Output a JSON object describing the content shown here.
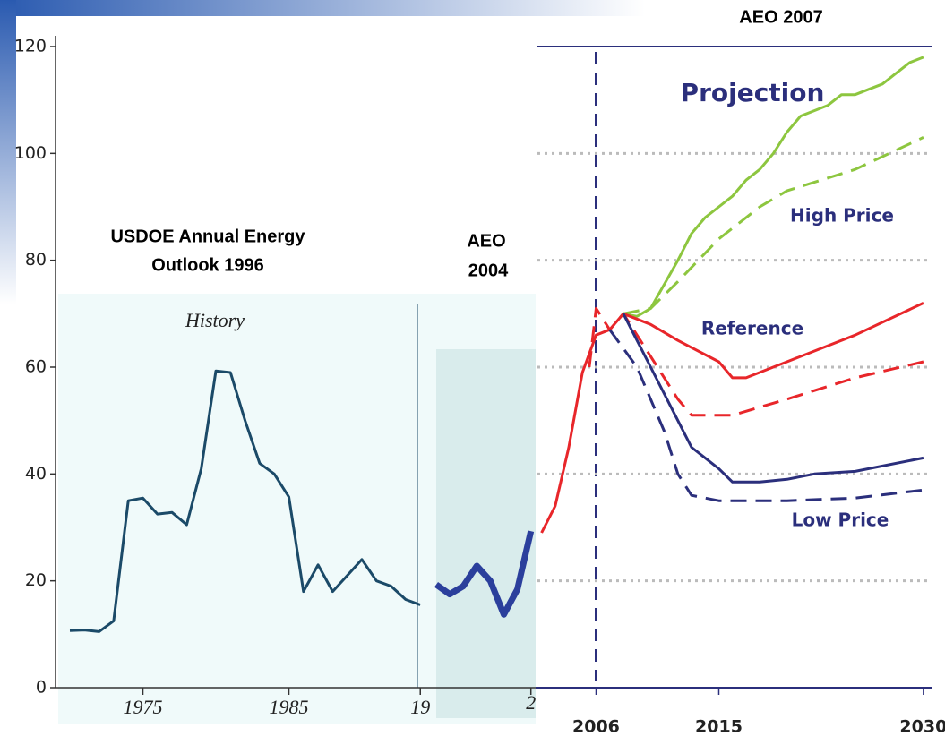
{
  "chart_data": [
    {
      "type": "line",
      "title": [
        "USDOE Annual Energy",
        "Outlook 1996"
      ],
      "annotation": "History",
      "xlim": [
        1969.2,
        2001.9
      ],
      "xticks": [
        1975,
        1985,
        {
          "value": 1994,
          "label": "19"
        }
      ],
      "ylim": [
        0,
        120
      ],
      "yticks": [
        0,
        20,
        40,
        60,
        80,
        100,
        120
      ],
      "series": [
        {
          "color": "#1b4a68",
          "x": [
            1970,
            1971,
            1972,
            1973,
            1974,
            1975,
            1976,
            1977,
            1978,
            1979,
            1980,
            1981,
            1982,
            1983,
            1984,
            1985,
            1986,
            1987,
            1988,
            1989,
            1990,
            1991,
            1992,
            1993,
            1994
          ],
          "values": [
            10.7,
            10.8,
            10.5,
            12.5,
            35,
            35.5,
            32.5,
            32.8,
            30.5,
            41,
            59.3,
            59,
            50,
            42,
            40,
            35.7,
            18,
            23,
            18,
            21,
            24,
            20,
            19,
            16.5,
            15.5
          ]
        }
      ]
    },
    {
      "type": "line",
      "title": [
        "AEO",
        "2004"
      ],
      "xlim": [
        1996,
        2003.35
      ],
      "xticks": [
        {
          "value": 2003,
          "label": "2"
        }
      ],
      "series": [
        {
          "color": "#2b3f9c",
          "x": [
            1996,
            1997,
            1998,
            1999,
            2000,
            2001,
            2002,
            2003
          ],
          "values": [
            19.3,
            17.5,
            19,
            22.8,
            20,
            13.7,
            18.4,
            29.3
          ]
        }
      ]
    },
    {
      "type": "line",
      "title": "AEO 2007",
      "annotation": "Projection",
      "xlim": [
        2001.7,
        2030.6
      ],
      "xticks": [
        2006,
        2015,
        2030
      ],
      "grid": true,
      "series": [
        {
          "name": "High Price",
          "color": "#8dc63f",
          "dashed": false,
          "x": [
            2008,
            2009,
            2010,
            2012,
            2013,
            2014,
            2015,
            2016,
            2017,
            2018,
            2019,
            2020,
            2021,
            2022,
            2023,
            2024,
            2025,
            2026,
            2027,
            2028,
            2029,
            2030
          ],
          "values": [
            70,
            69.5,
            71,
            80,
            85,
            88,
            90,
            92,
            95,
            97,
            100,
            104,
            107,
            108,
            109,
            111,
            111,
            112,
            113,
            115,
            117,
            118
          ]
        },
        {
          "color": "#8dc63f",
          "dashed": true,
          "x": [
            2008,
            2010,
            2012,
            2015,
            2018,
            2020,
            2025,
            2030
          ],
          "values": [
            70,
            71,
            76,
            84,
            90,
            93,
            97,
            103
          ]
        },
        {
          "name": "Reference",
          "color": "#e8262a",
          "dashed": false,
          "x": [
            2002,
            2003,
            2004,
            2005,
            2006,
            2007,
            2008,
            2010,
            2012,
            2015,
            2016,
            2017,
            2020,
            2025,
            2030
          ],
          "values": [
            29,
            34,
            45,
            59,
            66,
            67,
            70,
            68,
            65,
            61,
            58,
            58,
            61,
            66,
            72
          ]
        },
        {
          "color": "#e8262a",
          "dashed": true,
          "x": [
            2005.5,
            2006,
            2007,
            2008,
            2010,
            2012,
            2013,
            2016,
            2020,
            2025,
            2030
          ],
          "values": [
            60,
            71,
            67,
            70,
            62,
            54,
            51,
            51,
            54,
            58,
            61
          ]
        },
        {
          "name": "Low Price",
          "color": "#2b2f7c",
          "dashed": false,
          "x": [
            2008,
            2010,
            2012,
            2013,
            2015,
            2016,
            2018,
            2020,
            2022,
            2025,
            2030
          ],
          "values": [
            70,
            60,
            50,
            45,
            41,
            38.5,
            38.5,
            39,
            40,
            40.5,
            43
          ]
        },
        {
          "color": "#2b2f7c",
          "dashed": true,
          "x": [
            2007,
            2009,
            2011,
            2012,
            2013,
            2015,
            2020,
            2025,
            2030
          ],
          "values": [
            67,
            60,
            48,
            40,
            36,
            35,
            35,
            35.5,
            37
          ]
        }
      ]
    }
  ]
}
